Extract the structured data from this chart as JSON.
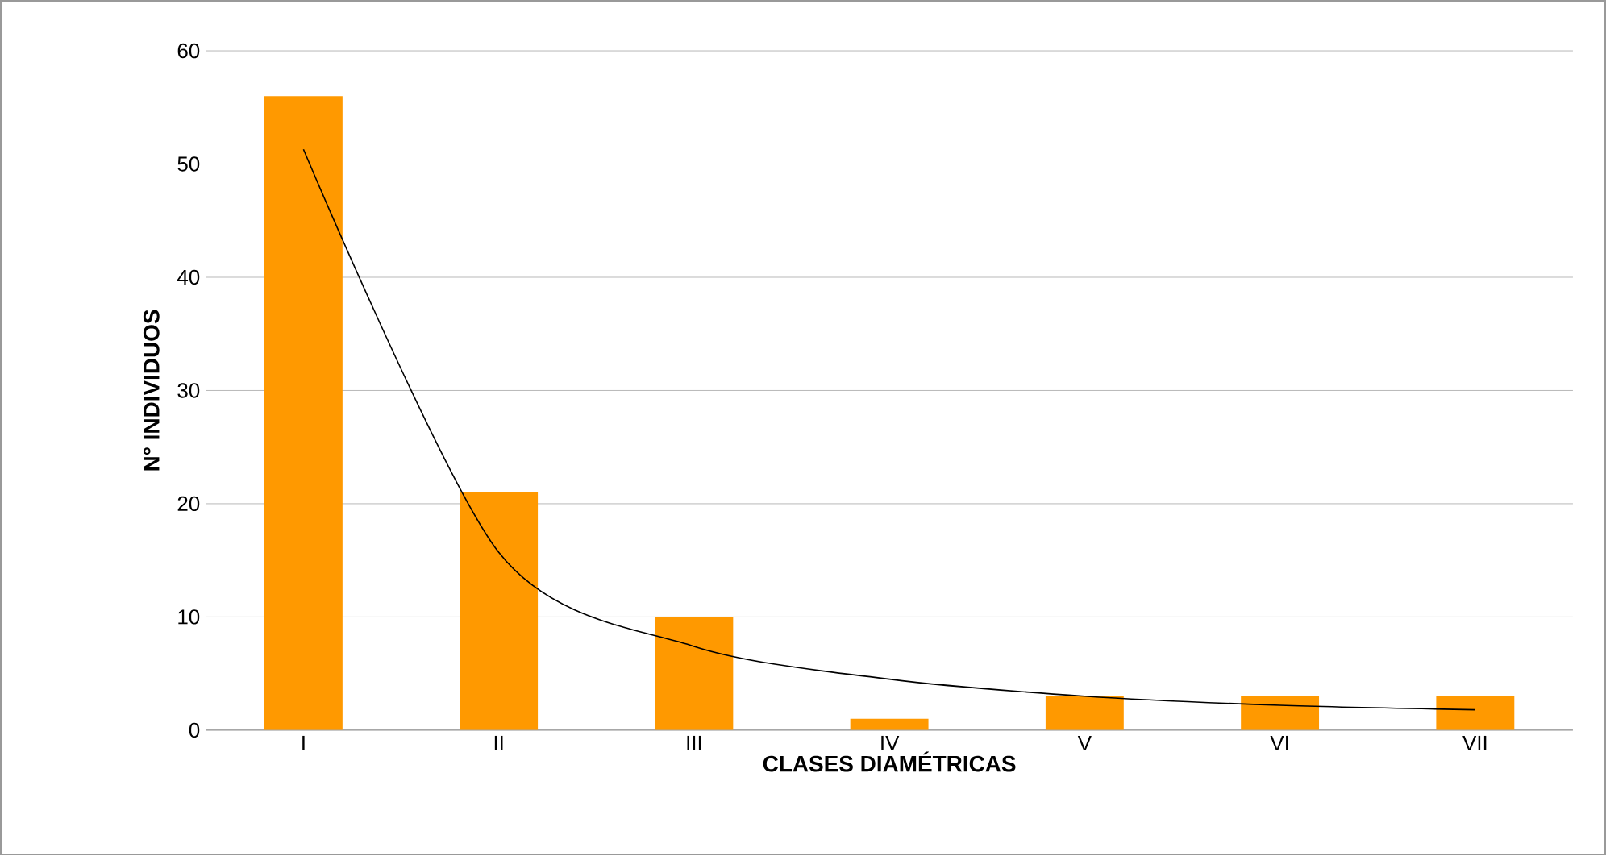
{
  "chart_data": {
    "type": "bar",
    "xlabel": "CLASES DIAMÉTRICAS",
    "ylabel": "N° INDIVIDUOS",
    "categories": [
      "I",
      "II",
      "III",
      "IV",
      "V",
      "VI",
      "VII"
    ],
    "ylim": [
      0,
      60
    ],
    "yticks": [
      0,
      10,
      20,
      30,
      40,
      50,
      60
    ],
    "grid": "y",
    "series": [
      {
        "color": "#ff9900",
        "values": [
          56,
          21,
          10,
          1,
          3,
          3,
          3
        ]
      },
      {
        "type": "line",
        "color": "#000000",
        "values": [
          51.3,
          15.7,
          7.4,
          4.5,
          3.0,
          2.2,
          1.8
        ]
      }
    ]
  }
}
